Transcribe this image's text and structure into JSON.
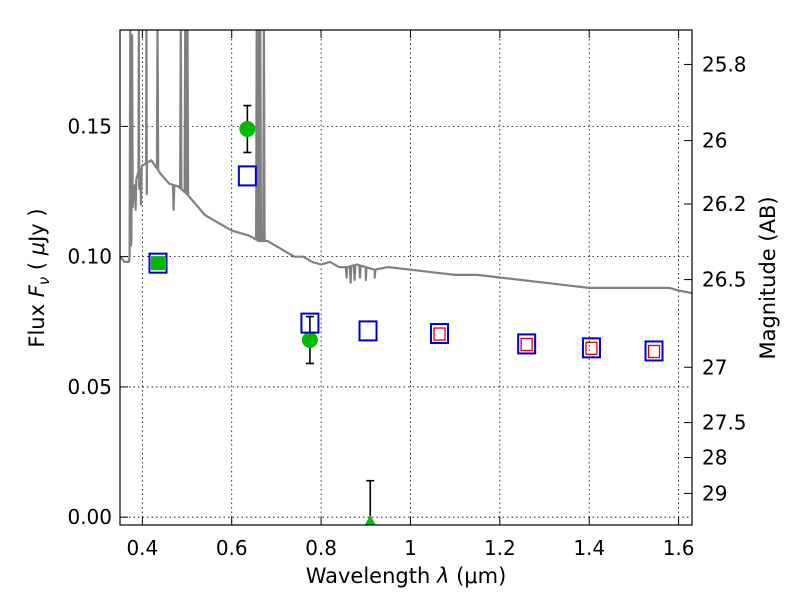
{
  "chart_data": {
    "type": "scatter",
    "x_axis": {
      "label_prefix": "Wavelength  ",
      "label_symbol": "λ",
      "label_unit": " (μm)",
      "range": [
        0.35,
        1.63
      ],
      "ticks": [
        0.4,
        0.6,
        0.8,
        1.0,
        1.2,
        1.4,
        1.6
      ],
      "tick_labels": [
        "0.4",
        "0.6",
        "0.8",
        "1",
        "1.2",
        "1.4",
        "1.6"
      ]
    },
    "y_axis": {
      "label_prefix": "Flux  ",
      "label_symbol": "F",
      "label_subscript": "ν",
      "label_unit_open": "  ( ",
      "label_mu": "μ",
      "label_unit_close": "Jy )",
      "range": [
        -0.003,
        0.187
      ],
      "ticks": [
        0.0,
        0.05,
        0.1,
        0.15
      ],
      "tick_labels": [
        "0.00",
        "0.05",
        "0.10",
        "0.15"
      ]
    },
    "y2_axis": {
      "label": "Magnitude (AB)",
      "ticks": [
        25.8,
        26,
        26.2,
        26.5,
        27,
        27.5,
        28,
        29
      ],
      "tick_labels": [
        "25.8",
        "26",
        "26.2",
        "26.5",
        "27",
        "27.5",
        "28",
        "29"
      ]
    },
    "grid": true,
    "colors": {
      "model": "#808080",
      "observed": "#00bb00",
      "model_photometry_blue": "#0000cc",
      "model_photometry_red": "#dd0000",
      "errorbar": "#000000",
      "grid": "#000000"
    },
    "model_spectrum": {
      "baseline": [
        [
          0.35,
          0.1
        ],
        [
          0.36,
          0.098
        ],
        [
          0.37,
          0.098
        ],
        [
          0.375,
          0.105
        ],
        [
          0.38,
          0.125
        ],
        [
          0.39,
          0.132
        ],
        [
          0.4,
          0.135
        ],
        [
          0.42,
          0.137
        ],
        [
          0.44,
          0.132
        ],
        [
          0.46,
          0.128
        ],
        [
          0.48,
          0.127
        ],
        [
          0.5,
          0.124
        ],
        [
          0.52,
          0.12
        ],
        [
          0.54,
          0.116
        ],
        [
          0.56,
          0.114
        ],
        [
          0.58,
          0.112
        ],
        [
          0.6,
          0.11
        ],
        [
          0.62,
          0.109
        ],
        [
          0.64,
          0.108
        ],
        [
          0.66,
          0.106
        ],
        [
          0.68,
          0.106
        ],
        [
          0.7,
          0.104
        ],
        [
          0.72,
          0.102
        ],
        [
          0.74,
          0.1
        ],
        [
          0.76,
          0.1
        ],
        [
          0.78,
          0.098
        ],
        [
          0.8,
          0.097
        ],
        [
          0.82,
          0.098
        ],
        [
          0.84,
          0.096
        ],
        [
          0.86,
          0.096
        ],
        [
          0.88,
          0.097
        ],
        [
          0.9,
          0.096
        ],
        [
          0.92,
          0.095
        ],
        [
          0.95,
          0.096
        ],
        [
          1.0,
          0.095
        ],
        [
          1.05,
          0.094
        ],
        [
          1.1,
          0.093
        ],
        [
          1.15,
          0.093
        ],
        [
          1.2,
          0.092
        ],
        [
          1.25,
          0.091
        ],
        [
          1.3,
          0.09
        ],
        [
          1.35,
          0.089
        ],
        [
          1.4,
          0.088
        ],
        [
          1.45,
          0.088
        ],
        [
          1.5,
          0.088
        ],
        [
          1.55,
          0.088
        ],
        [
          1.58,
          0.088
        ],
        [
          1.6,
          0.087
        ],
        [
          1.63,
          0.086
        ]
      ],
      "spikes": [
        [
          0.373,
          0.19
        ],
        [
          0.377,
          0.185
        ],
        [
          0.392,
          0.19
        ],
        [
          0.409,
          0.19
        ],
        [
          0.434,
          0.19
        ],
        [
          0.486,
          0.19
        ],
        [
          0.496,
          0.19
        ],
        [
          0.501,
          0.19
        ],
        [
          0.656,
          0.19
        ],
        [
          0.659,
          0.19
        ],
        [
          0.664,
          0.19
        ],
        [
          0.672,
          0.19
        ]
      ],
      "dips": [
        [
          0.385,
          0.118
        ],
        [
          0.393,
          0.126
        ],
        [
          0.397,
          0.12
        ],
        [
          0.41,
          0.124
        ],
        [
          0.47,
          0.118
        ],
        [
          0.857,
          0.092
        ],
        [
          0.866,
          0.09
        ],
        [
          0.875,
          0.091
        ],
        [
          0.887,
          0.092
        ],
        [
          0.9,
          0.091
        ],
        [
          0.92,
          0.092
        ]
      ]
    },
    "observed_points": [
      {
        "x": 0.435,
        "y": 0.0975,
        "marker": "square_filled",
        "err": null
      },
      {
        "x": 0.635,
        "y": 0.149,
        "marker": "circle",
        "err": 0.009
      },
      {
        "x": 0.775,
        "y": 0.068,
        "marker": "circle",
        "err": 0.009
      },
      {
        "x": 0.91,
        "y": -0.003,
        "marker": "triangle",
        "err_upper": 0.017
      }
    ],
    "model_photometry_blue": [
      {
        "x": 0.435,
        "y": 0.0975
      },
      {
        "x": 0.635,
        "y": 0.131
      },
      {
        "x": 0.775,
        "y": 0.0745
      },
      {
        "x": 0.905,
        "y": 0.0715
      },
      {
        "x": 1.065,
        "y": 0.0705
      },
      {
        "x": 1.26,
        "y": 0.0665
      },
      {
        "x": 1.405,
        "y": 0.065
      },
      {
        "x": 1.545,
        "y": 0.0638
      }
    ],
    "model_photometry_red": [
      {
        "x": 1.065,
        "y": 0.0703
      },
      {
        "x": 1.26,
        "y": 0.0663
      },
      {
        "x": 1.405,
        "y": 0.0648
      },
      {
        "x": 1.545,
        "y": 0.0636
      }
    ]
  }
}
